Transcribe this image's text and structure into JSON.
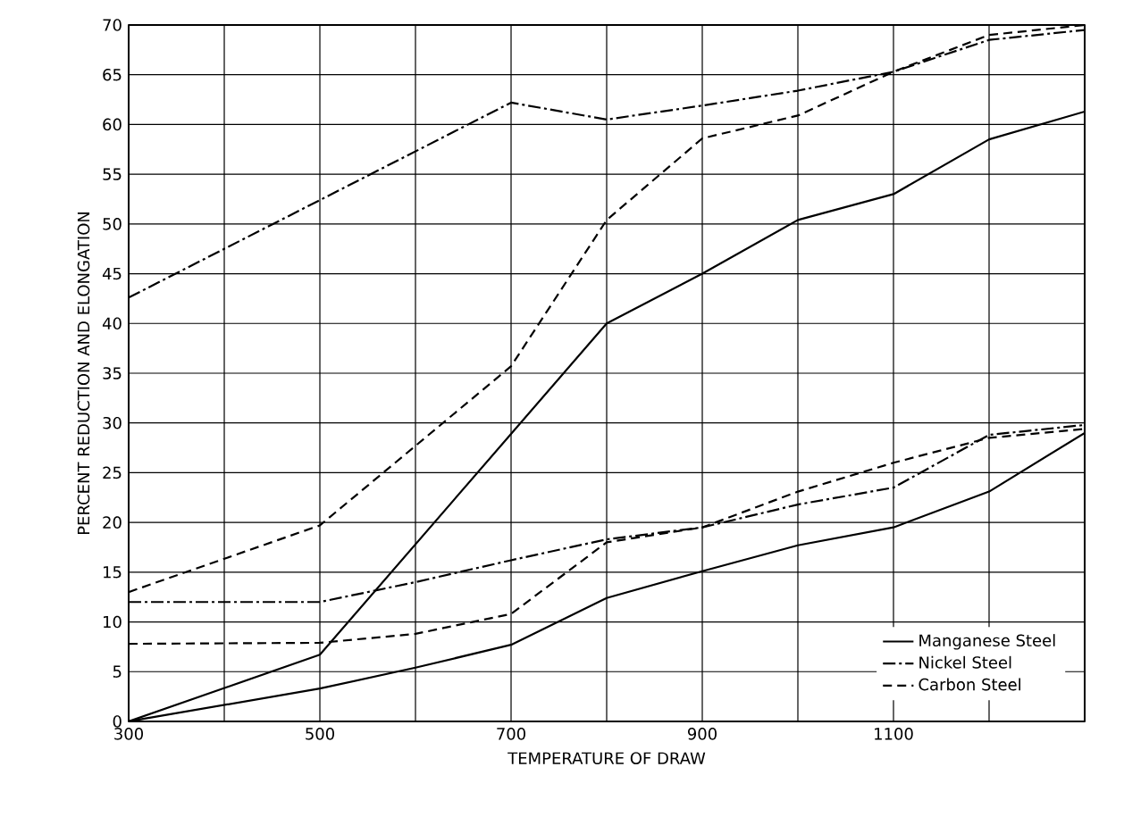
{
  "chart_data": {
    "type": "line",
    "xlabel": "TEMPERATURE OF DRAW",
    "ylabel": "PERCENT REDUCTION AND ELONGATION",
    "xlim": [
      300,
      1300
    ],
    "ylim": [
      0,
      70
    ],
    "xticks": [
      300,
      {
        "value": 400,
        "label": null
      },
      500,
      {
        "value": 600,
        "label": null
      },
      700,
      {
        "value": 800,
        "label": null
      },
      900,
      {
        "value": 1000,
        "label": null
      },
      1100,
      {
        "value": 1200,
        "label": null
      },
      {
        "value": 1300,
        "label": null
      }
    ],
    "yticks": [
      0,
      5,
      10,
      15,
      20,
      25,
      30,
      35,
      40,
      45,
      50,
      55,
      60,
      65,
      70
    ],
    "grid": true,
    "legend": "bottom right",
    "marker": "none",
    "series": [
      {
        "name": "Manganese Steel",
        "color": "#000000",
        "line_style": "solid",
        "x": [
          300,
          500,
          800,
          900,
          1000,
          1100,
          1200,
          1300
        ],
        "values": [
          0,
          6.7,
          40,
          45,
          50.4,
          53,
          58.5,
          61.3
        ]
      },
      {
        "name": "Nickel Steel",
        "color": "#000000",
        "line_style": "dashdot",
        "x": [
          300,
          700,
          800,
          900,
          1000,
          1100,
          1200,
          1300
        ],
        "values": [
          42.6,
          62.2,
          60.5,
          61.9,
          63.4,
          65.3,
          68.5,
          69.5
        ]
      },
      {
        "name": "Carbon Steel",
        "color": "#000000",
        "line_style": "dashed",
        "x": [
          300,
          500,
          700,
          800,
          900,
          1000,
          1100,
          1200,
          1300
        ],
        "values": [
          13,
          19.7,
          35.7,
          50.4,
          58.6,
          60.9,
          65.3,
          69,
          70
        ]
      },
      {
        "color": "#000000",
        "line_style": "solid",
        "x": [
          300,
          500,
          600,
          700,
          800,
          900,
          1000,
          1100,
          1200,
          1300
        ],
        "values": [
          0,
          3.3,
          5.4,
          7.7,
          12.4,
          15.1,
          17.7,
          19.5,
          23.1,
          29
        ]
      },
      {
        "color": "#000000",
        "line_style": "dashdot",
        "x": [
          300,
          500,
          600,
          700,
          800,
          900,
          1000,
          1100,
          1200,
          1300
        ],
        "values": [
          12,
          12,
          14,
          16.2,
          18.3,
          19.5,
          21.8,
          23.5,
          28.8,
          29.8
        ]
      },
      {
        "color": "#000000",
        "line_style": "dashed",
        "x": [
          300,
          500,
          600,
          700,
          800,
          900,
          1000,
          1100,
          1200,
          1300
        ],
        "values": [
          7.8,
          7.9,
          8.8,
          10.8,
          18,
          19.5,
          23.1,
          26,
          28.5,
          29.4
        ]
      }
    ]
  }
}
